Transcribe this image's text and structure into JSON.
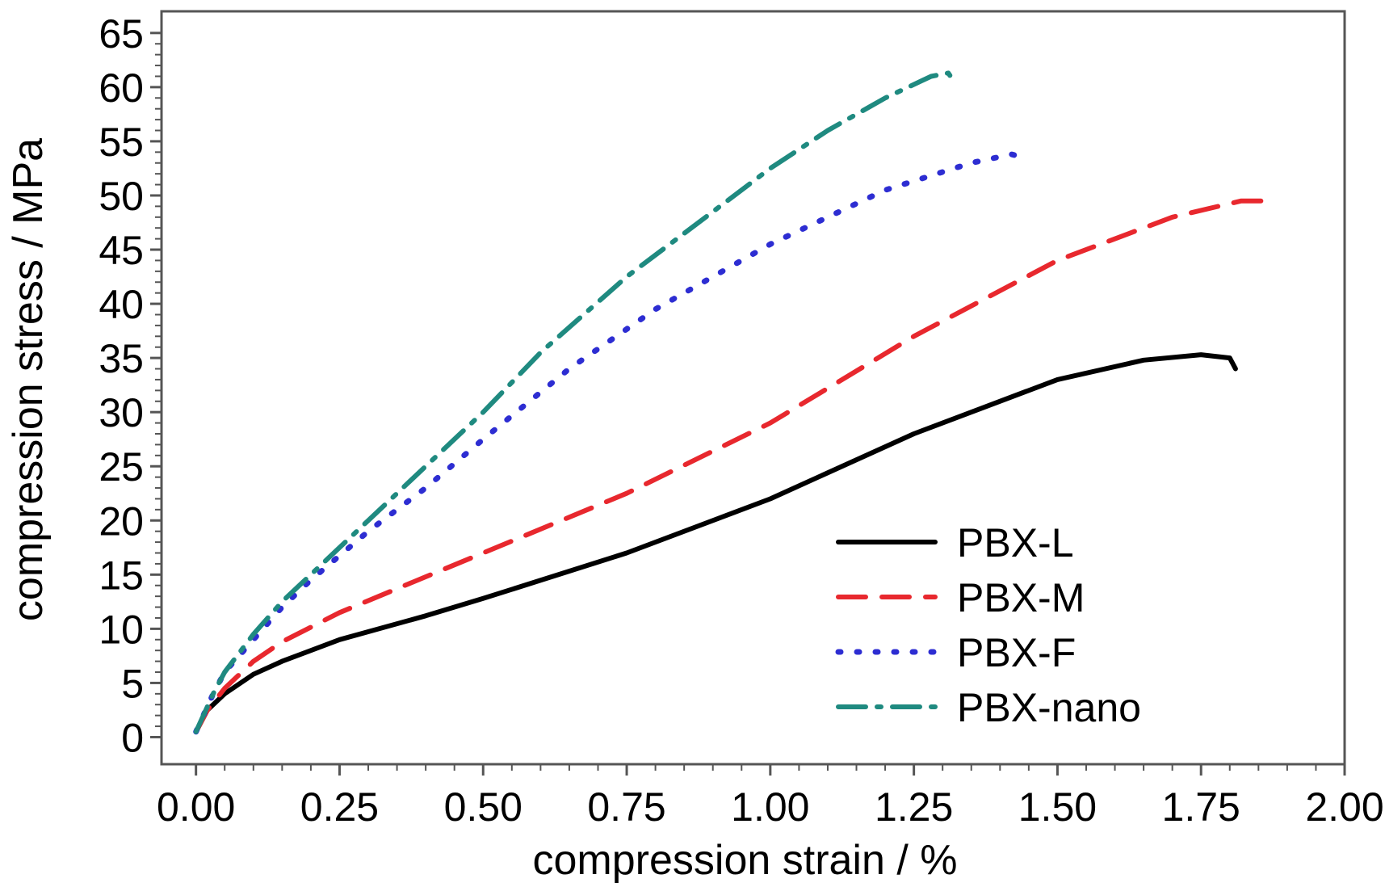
{
  "chart_data": {
    "type": "line",
    "xlabel": "compression strain / %",
    "ylabel": "compression stress / MPa",
    "xlim": [
      -0.06,
      2.0
    ],
    "ylim": [
      -2.5,
      67
    ],
    "xticks": [
      "0.00",
      "0.25",
      "0.50",
      "0.75",
      "1.00",
      "1.25",
      "1.50",
      "1.75",
      "2.00"
    ],
    "yticks": [
      "0",
      "5",
      "10",
      "15",
      "20",
      "25",
      "30",
      "35",
      "40",
      "45",
      "50",
      "55",
      "60",
      "65"
    ],
    "grid": false,
    "legend_position": "lower-right",
    "series": [
      {
        "name": "PBX-L",
        "color": "#000000",
        "style": "solid",
        "x": [
          0.0,
          0.02,
          0.05,
          0.1,
          0.15,
          0.25,
          0.4,
          0.5,
          0.75,
          1.0,
          1.25,
          1.5,
          1.65,
          1.75,
          1.8,
          1.81
        ],
        "y": [
          0.5,
          2.5,
          4.0,
          5.8,
          7.0,
          9.0,
          11.2,
          12.8,
          17.0,
          22.0,
          28.0,
          33.0,
          34.8,
          35.3,
          35.0,
          34.0
        ]
      },
      {
        "name": "PBX-M",
        "color": "#e8282e",
        "style": "dashed",
        "x": [
          0.0,
          0.02,
          0.05,
          0.1,
          0.15,
          0.25,
          0.4,
          0.5,
          0.75,
          1.0,
          1.25,
          1.5,
          1.7,
          1.82,
          1.86,
          1.87
        ],
        "y": [
          0.5,
          2.5,
          4.5,
          7.0,
          8.8,
          11.5,
          14.8,
          17.0,
          22.5,
          29.0,
          37.0,
          44.0,
          48.0,
          49.5,
          49.5,
          48.5
        ]
      },
      {
        "name": "PBX-F",
        "color": "#2d2dd2",
        "style": "dotted",
        "x": [
          0.0,
          0.03,
          0.05,
          0.1,
          0.15,
          0.2,
          0.3,
          0.4,
          0.5,
          0.65,
          0.8,
          1.0,
          1.2,
          1.35,
          1.42,
          1.44
        ],
        "y": [
          0.5,
          4.0,
          6.0,
          9.0,
          12.0,
          14.5,
          19.0,
          23.0,
          27.5,
          34.0,
          39.5,
          45.5,
          50.5,
          53.0,
          53.8,
          53.5
        ]
      },
      {
        "name": "PBX-nano",
        "color": "#1f8a80",
        "style": "dashdot",
        "x": [
          0.0,
          0.03,
          0.05,
          0.1,
          0.15,
          0.2,
          0.3,
          0.4,
          0.5,
          0.6,
          0.75,
          0.9,
          1.0,
          1.1,
          1.2,
          1.28,
          1.31,
          1.32
        ],
        "y": [
          0.5,
          4.0,
          6.0,
          9.5,
          12.5,
          15.0,
          20.0,
          25.0,
          30.0,
          35.5,
          42.5,
          48.5,
          52.5,
          56.0,
          59.0,
          61.0,
          61.3,
          60.5
        ]
      }
    ]
  }
}
